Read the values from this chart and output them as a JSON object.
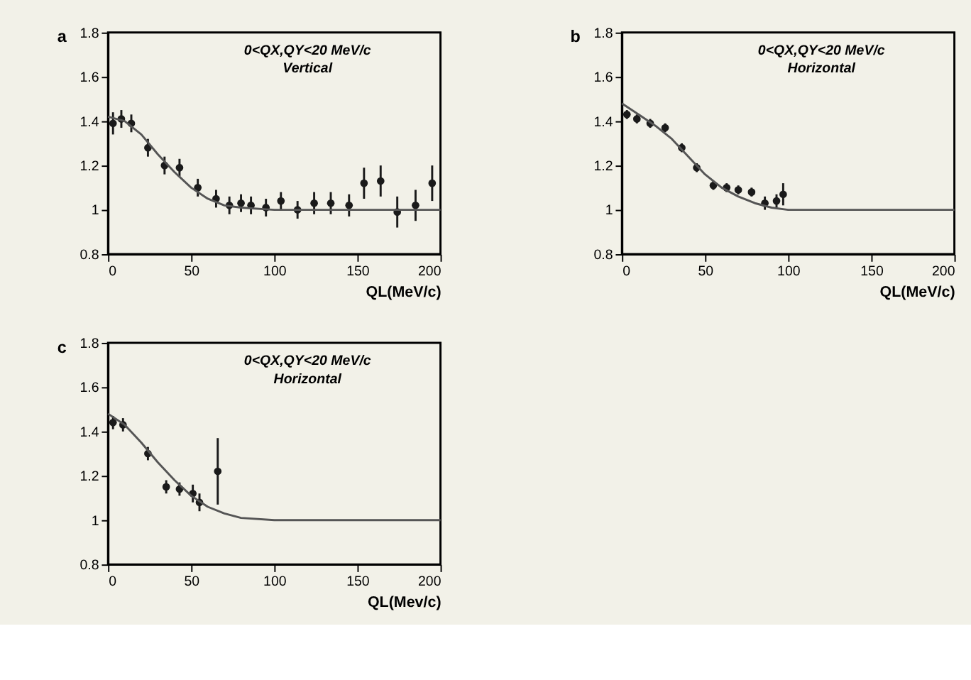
{
  "chart_data": [
    {
      "type": "scatter",
      "annotations": [
        "a",
        "0<QX,QY<20 MeV/c",
        "Vertical"
      ],
      "xlabel": "QL(MeV/c)",
      "xlim": [
        0,
        200
      ],
      "xticks": [
        0,
        50,
        100,
        150,
        200
      ],
      "ylim": [
        0.8,
        1.8
      ],
      "yticks": [
        0.8,
        1,
        1.2,
        1.4,
        1.6,
        1.8
      ],
      "marker": "circle",
      "series": [
        {
          "color": "#1a1a1a",
          "x": [
            3,
            8,
            14,
            24,
            34,
            43,
            54,
            65,
            73,
            80,
            86,
            95,
            104,
            114,
            124,
            134,
            145,
            154,
            164,
            174,
            185,
            195
          ],
          "values": [
            1.39,
            1.41,
            1.39,
            1.28,
            1.2,
            1.19,
            1.1,
            1.05,
            1.02,
            1.03,
            1.02,
            1.01,
            1.04,
            1.0,
            1.03,
            1.03,
            1.02,
            1.12,
            1.13,
            0.99,
            1.02,
            1.12
          ],
          "errors": [
            0.05,
            0.04,
            0.04,
            0.04,
            0.04,
            0.04,
            0.04,
            0.04,
            0.04,
            0.04,
            0.04,
            0.04,
            0.04,
            0.04,
            0.05,
            0.05,
            0.05,
            0.07,
            0.07,
            0.07,
            0.07,
            0.08
          ]
        },
        {
          "type": "line",
          "color": "#555555",
          "line_style": "solid",
          "marker": "none",
          "x": [
            0,
            10,
            20,
            30,
            40,
            50,
            60,
            70,
            80,
            100,
            200
          ],
          "values": [
            1.42,
            1.4,
            1.34,
            1.25,
            1.17,
            1.1,
            1.05,
            1.02,
            1.01,
            1.0,
            1.0
          ]
        }
      ]
    },
    {
      "type": "scatter",
      "annotations": [
        "b",
        "0<QX,QY<20 MeV/c",
        "Horizontal"
      ],
      "xlabel": "QL(MeV/c)",
      "xlim": [
        0,
        200
      ],
      "xticks": [
        0,
        50,
        100,
        150,
        200
      ],
      "ylim": [
        0.8,
        1.8
      ],
      "yticks": [
        0.8,
        1,
        1.2,
        1.4,
        1.6,
        1.8
      ],
      "marker": "circle",
      "series": [
        {
          "color": "#1a1a1a",
          "x": [
            3,
            9,
            17,
            26,
            36,
            45,
            55,
            63,
            70,
            78,
            86,
            93,
            97
          ],
          "values": [
            1.43,
            1.41,
            1.39,
            1.37,
            1.28,
            1.19,
            1.11,
            1.1,
            1.09,
            1.08,
            1.03,
            1.04,
            1.07
          ],
          "errors": [
            0.02,
            0.02,
            0.02,
            0.02,
            0.02,
            0.02,
            0.02,
            0.02,
            0.02,
            0.02,
            0.03,
            0.03,
            0.05
          ]
        },
        {
          "type": "line",
          "color": "#555555",
          "line_style": "solid",
          "marker": "none",
          "x": [
            0,
            10,
            20,
            30,
            40,
            50,
            60,
            70,
            80,
            90,
            100,
            200
          ],
          "values": [
            1.48,
            1.43,
            1.38,
            1.32,
            1.24,
            1.16,
            1.1,
            1.06,
            1.03,
            1.01,
            1.0,
            1.0
          ]
        }
      ]
    },
    {
      "type": "scatter",
      "annotations": [
        "c",
        "0<QX,QY<20 MeV/c",
        "Horizontal"
      ],
      "xlabel": "QL(Mev/c)",
      "xlim": [
        0,
        200
      ],
      "xticks": [
        0,
        50,
        100,
        150,
        200
      ],
      "ylim": [
        0.8,
        1.8
      ],
      "yticks": [
        0.8,
        1,
        1.2,
        1.4,
        1.6,
        1.8
      ],
      "marker": "circle",
      "series": [
        {
          "color": "#1a1a1a",
          "x": [
            3,
            9,
            24,
            35,
            43,
            51,
            55,
            66
          ],
          "values": [
            1.44,
            1.43,
            1.3,
            1.15,
            1.14,
            1.12,
            1.08,
            1.22
          ],
          "errors": [
            0.03,
            0.03,
            0.03,
            0.03,
            0.03,
            0.04,
            0.04,
            0.15
          ]
        },
        {
          "type": "line",
          "color": "#555555",
          "line_style": "solid",
          "marker": "none",
          "x": [
            0,
            10,
            20,
            30,
            40,
            50,
            60,
            70,
            80,
            100,
            200
          ],
          "values": [
            1.48,
            1.43,
            1.35,
            1.26,
            1.18,
            1.11,
            1.06,
            1.03,
            1.01,
            1.0,
            1.0
          ]
        }
      ]
    }
  ]
}
